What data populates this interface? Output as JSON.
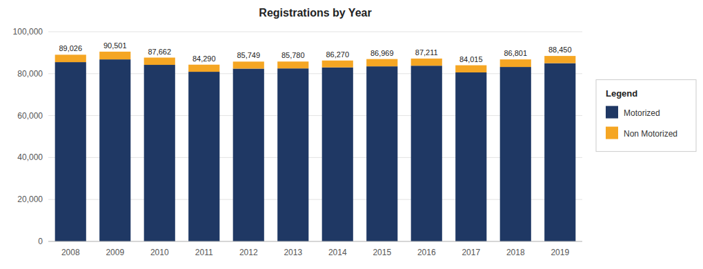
{
  "chart_data": {
    "type": "bar",
    "stacked": true,
    "title": "Registrations by Year",
    "categories": [
      "2008",
      "2009",
      "2010",
      "2011",
      "2012",
      "2013",
      "2014",
      "2015",
      "2016",
      "2017",
      "2018",
      "2019"
    ],
    "series": [
      {
        "name": "Motorized",
        "color": "#1F3864",
        "values": [
          85500,
          86800,
          84200,
          80900,
          82400,
          82500,
          83000,
          83500,
          83800,
          80600,
          83200,
          85000
        ]
      },
      {
        "name": "Non Motorized",
        "color": "#F5A623",
        "values": [
          3526,
          3701,
          3462,
          3390,
          3349,
          3280,
          3270,
          3469,
          3411,
          3415,
          3601,
          3450
        ]
      }
    ],
    "totals": [
      89026,
      90501,
      87662,
      84290,
      85749,
      85780,
      86270,
      86969,
      87211,
      84015,
      86801,
      88450
    ],
    "total_labels": [
      "89,026",
      "90,501",
      "87,662",
      "84,290",
      "85,749",
      "85,780",
      "86,270",
      "86,969",
      "87,211",
      "84,015",
      "86,801",
      "88,450"
    ],
    "ylim": [
      0,
      100000
    ],
    "yticks": [
      0,
      {
        "value": 20000,
        "label": "20,000"
      },
      {
        "value": 40000,
        "label": "40,000"
      },
      {
        "value": 60000,
        "label": "60,000"
      },
      {
        "value": 80000,
        "label": "80,000"
      },
      {
        "value": 100000,
        "label": "100,000"
      }
    ],
    "grid": true,
    "legend": "right",
    "legend_title": "Legend"
  }
}
